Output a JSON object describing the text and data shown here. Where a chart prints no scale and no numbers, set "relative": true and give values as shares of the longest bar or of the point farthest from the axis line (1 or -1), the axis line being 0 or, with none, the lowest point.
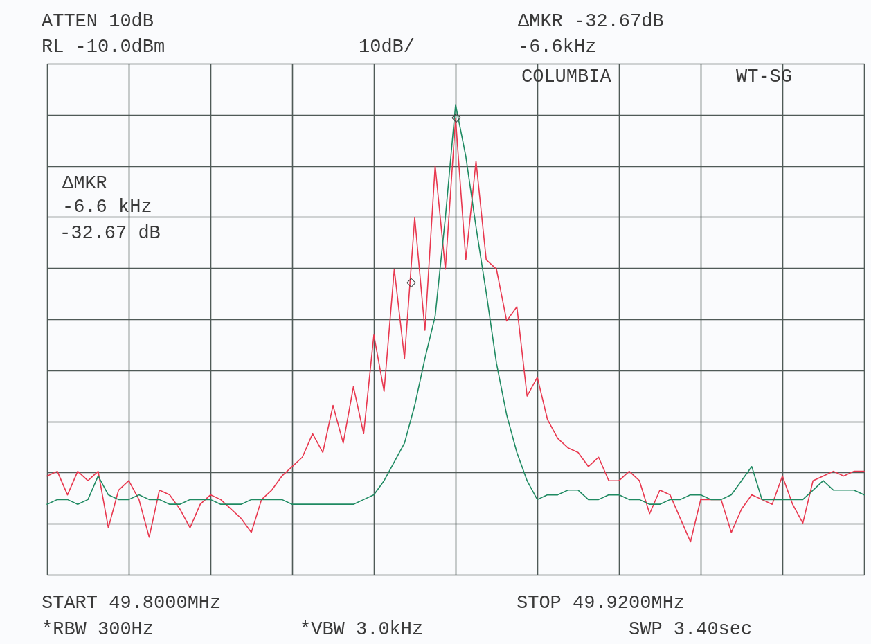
{
  "chart_data": {
    "type": "line",
    "relative": true,
    "annotations": [
      "ATTEN 10dB",
      "ΔMKR -32.67dB",
      "RL -10.0dBm",
      "10dB/",
      "-6.6kHz",
      "COLUMBIA",
      "WT-SG",
      "ΔMKR",
      "-6.6 kHz",
      "-32.67 dB",
      "START 49.8000MHz",
      "STOP 49.9200MHz",
      "*RBW 300Hz",
      "*VBW 3.0kHz",
      "SWP 3.40sec",
      "◇",
      "◇"
    ],
    "categories": [
      null,
      null,
      null,
      null,
      null,
      null,
      null,
      null,
      null,
      null,
      null,
      null,
      null,
      null,
      null,
      null,
      null,
      null,
      null,
      null,
      null,
      null,
      null,
      null,
      null,
      null,
      null,
      null,
      null,
      null,
      null,
      null,
      null,
      null,
      null,
      null,
      null,
      null,
      null,
      null,
      null,
      null,
      null,
      null,
      null,
      null,
      null,
      null,
      null,
      null,
      null,
      null,
      null,
      null,
      null,
      null,
      null,
      null,
      null,
      null,
      null,
      null,
      null,
      null,
      null,
      null,
      null,
      null,
      null,
      null,
      null,
      null,
      null,
      null,
      null,
      null,
      null,
      null,
      null,
      null,
      null
    ],
    "grid": true,
    "line_style": "solid",
    "series": [
      {
        "color": "#e8384f",
        "values": [
          0.21,
          0.22,
          0.17,
          0.22,
          0.2,
          0.22,
          0.1,
          0.18,
          0.2,
          0.16,
          0.08,
          0.18,
          0.17,
          0.14,
          0.1,
          0.15,
          0.17,
          0.16,
          0.14,
          0.12,
          0.09,
          0.16,
          0.18,
          0.21,
          0.23,
          0.25,
          0.3,
          0.26,
          0.36,
          0.28,
          0.4,
          0.3,
          0.51,
          0.39,
          0.65,
          0.46,
          0.76,
          0.52,
          0.87,
          0.65,
          0.97,
          0.67,
          0.88,
          0.67,
          0.65,
          0.54,
          0.57,
          0.38,
          0.42,
          0.33,
          0.29,
          0.27,
          0.26,
          0.23,
          0.25,
          0.2,
          0.2,
          0.22,
          0.2,
          0.13,
          0.18,
          0.17,
          0.12,
          0.07,
          0.16,
          0.16,
          0.16,
          0.09,
          0.14,
          0.17,
          0.16,
          0.15,
          0.21,
          0.15,
          0.11,
          0.2,
          0.21,
          0.22,
          0.21,
          0.22,
          0.22
        ]
      },
      {
        "color": "#1f8a62",
        "values": [
          0.15,
          0.16,
          0.16,
          0.15,
          0.16,
          0.21,
          0.17,
          0.16,
          0.16,
          0.17,
          0.16,
          0.16,
          0.15,
          0.15,
          0.16,
          0.16,
          0.16,
          0.15,
          0.15,
          0.15,
          0.16,
          0.16,
          0.16,
          0.16,
          0.15,
          0.15,
          0.15,
          0.15,
          0.15,
          0.15,
          0.15,
          0.16,
          0.17,
          0.2,
          0.24,
          0.28,
          0.36,
          0.46,
          0.55,
          0.76,
          1.0,
          0.89,
          0.74,
          0.6,
          0.45,
          0.34,
          0.26,
          0.2,
          0.16,
          0.17,
          0.17,
          0.18,
          0.18,
          0.16,
          0.16,
          0.17,
          0.17,
          0.16,
          0.16,
          0.15,
          0.15,
          0.16,
          0.16,
          0.17,
          0.17,
          0.16,
          0.16,
          0.17,
          0.2,
          0.23,
          0.16,
          0.16,
          0.16,
          0.16,
          0.16,
          0.18,
          0.2,
          0.18,
          0.18,
          0.18,
          0.17
        ]
      }
    ]
  }
}
